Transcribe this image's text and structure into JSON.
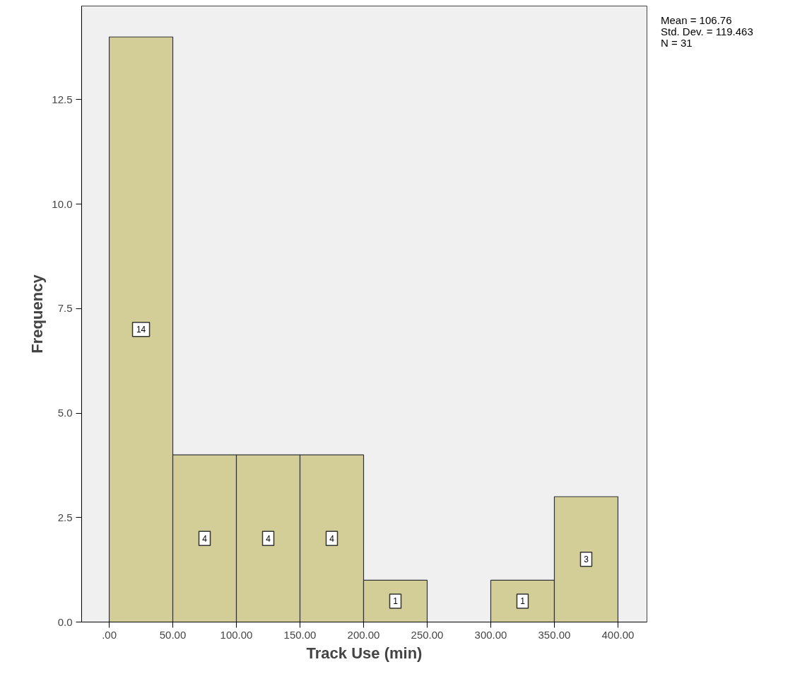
{
  "chart_data": {
    "type": "histogram",
    "xlabel": "Track Use (min)",
    "ylabel": "Frequency",
    "bins": [
      0,
      50,
      100,
      150,
      200,
      250,
      300,
      350,
      400
    ],
    "values": [
      14,
      4,
      4,
      4,
      1,
      0,
      1,
      3
    ],
    "value_labels": [
      "14",
      "4",
      "4",
      "4",
      "1",
      null,
      "1",
      "3"
    ],
    "color": "#d3ce97",
    "xlim": [
      -21.7,
      422.8
    ],
    "ylim": [
      0,
      14.74
    ],
    "xticks": [
      {
        "value": 0,
        "label": ".00"
      },
      {
        "value": 50,
        "label": "50.00"
      },
      {
        "value": 100,
        "label": "100.00"
      },
      {
        "value": 150,
        "label": "150.00"
      },
      {
        "value": 200,
        "label": "200.00"
      },
      {
        "value": 250,
        "label": "250.00"
      },
      {
        "value": 300,
        "label": "300.00"
      },
      {
        "value": 350,
        "label": "350.00"
      },
      {
        "value": 400,
        "label": "400.00"
      }
    ],
    "yticks": [
      {
        "value": 0,
        "label": "0.0"
      },
      {
        "value": 2.5,
        "label": "2.5"
      },
      {
        "value": 5,
        "label": "5.0"
      },
      {
        "value": 7.5,
        "label": "7.5"
      },
      {
        "value": 10,
        "label": "10.0"
      },
      {
        "value": 12.5,
        "label": "12.5"
      }
    ],
    "annotations": [
      "Mean = 106.76",
      "Std. Dev. = 119.463",
      "N = 31"
    ],
    "grid": false
  }
}
